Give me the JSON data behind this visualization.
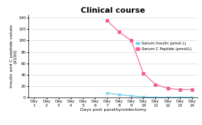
{
  "title": "Clinical course",
  "xlabel": "Days post parathyroidectomy",
  "ylabel": "Insulin and C peptide values\n(X100)",
  "days": [
    1,
    2,
    3,
    4,
    5,
    6,
    7,
    8,
    9,
    10,
    11,
    12,
    13,
    14
  ],
  "insulin": [
    null,
    null,
    null,
    null,
    null,
    null,
    8,
    5,
    3,
    1,
    0.5,
    0.5,
    0.5,
    0.5
  ],
  "cpeptide": [
    null,
    null,
    null,
    null,
    null,
    null,
    135,
    115,
    100,
    42,
    23,
    16,
    14,
    14
  ],
  "insulin_color": "#5bc8e8",
  "cpeptide_color": "#f06090",
  "ylim": [
    0,
    145
  ],
  "yticks": [
    0,
    20,
    40,
    60,
    80,
    100,
    120,
    140
  ],
  "legend_insulin": "Serum Insulin (pmol L)",
  "legend_cpeptide": "Serum C Peptide (pmol/L)",
  "background_color": "#ffffff",
  "grid_color": "#d8d8d8",
  "title_fontsize": 8,
  "label_fontsize": 4.5,
  "tick_fontsize": 4,
  "legend_fontsize": 4
}
